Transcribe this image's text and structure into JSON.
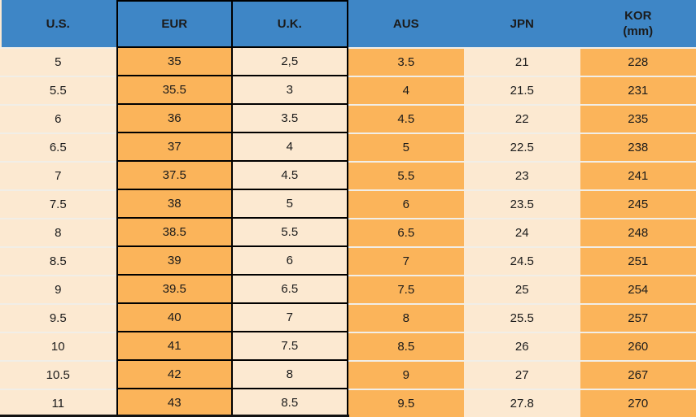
{
  "chart_data": {
    "type": "table",
    "columns": [
      {
        "label": "U.S.",
        "sublabel": ""
      },
      {
        "label": "EUR",
        "sublabel": ""
      },
      {
        "label": "U.K.",
        "sublabel": ""
      },
      {
        "label": "AUS",
        "sublabel": ""
      },
      {
        "label": "JPN",
        "sublabel": ""
      },
      {
        "label": "KOR",
        "sublabel": "(mm)"
      }
    ],
    "rows": [
      [
        "5",
        "35",
        "2,5",
        "3.5",
        "21",
        "228"
      ],
      [
        "5.5",
        "35.5",
        "3",
        "4",
        "21.5",
        "231"
      ],
      [
        "6",
        "36",
        "3.5",
        "4.5",
        "22",
        "235"
      ],
      [
        "6.5",
        "37",
        "4",
        "5",
        "22.5",
        "238"
      ],
      [
        "7",
        "37.5",
        "4.5",
        "5.5",
        "23",
        "241"
      ],
      [
        "7.5",
        "38",
        "5",
        "6",
        "23.5",
        "245"
      ],
      [
        "8",
        "38.5",
        "5.5",
        "6.5",
        "24",
        "248"
      ],
      [
        "8.5",
        "39",
        "6",
        "7",
        "24.5",
        "251"
      ],
      [
        "9",
        "39.5",
        "6.5",
        "7.5",
        "25",
        "254"
      ],
      [
        "9.5",
        "40",
        "7",
        "8",
        "25.5",
        "257"
      ],
      [
        "10",
        "41",
        "7.5",
        "8.5",
        "26",
        "260"
      ],
      [
        "10.5",
        "42",
        "8",
        "9",
        "27",
        "267"
      ],
      [
        "11",
        "43",
        "8.5",
        "9.5",
        "27.8",
        "270"
      ]
    ]
  },
  "colors": {
    "header_bg": "#3E86C6",
    "orange_cell": "#FBB45A",
    "cream_cell": "#FCE9D1",
    "row_separator": "#F1EEE7",
    "black_border": "#000000",
    "text": "#1B1B1B"
  }
}
